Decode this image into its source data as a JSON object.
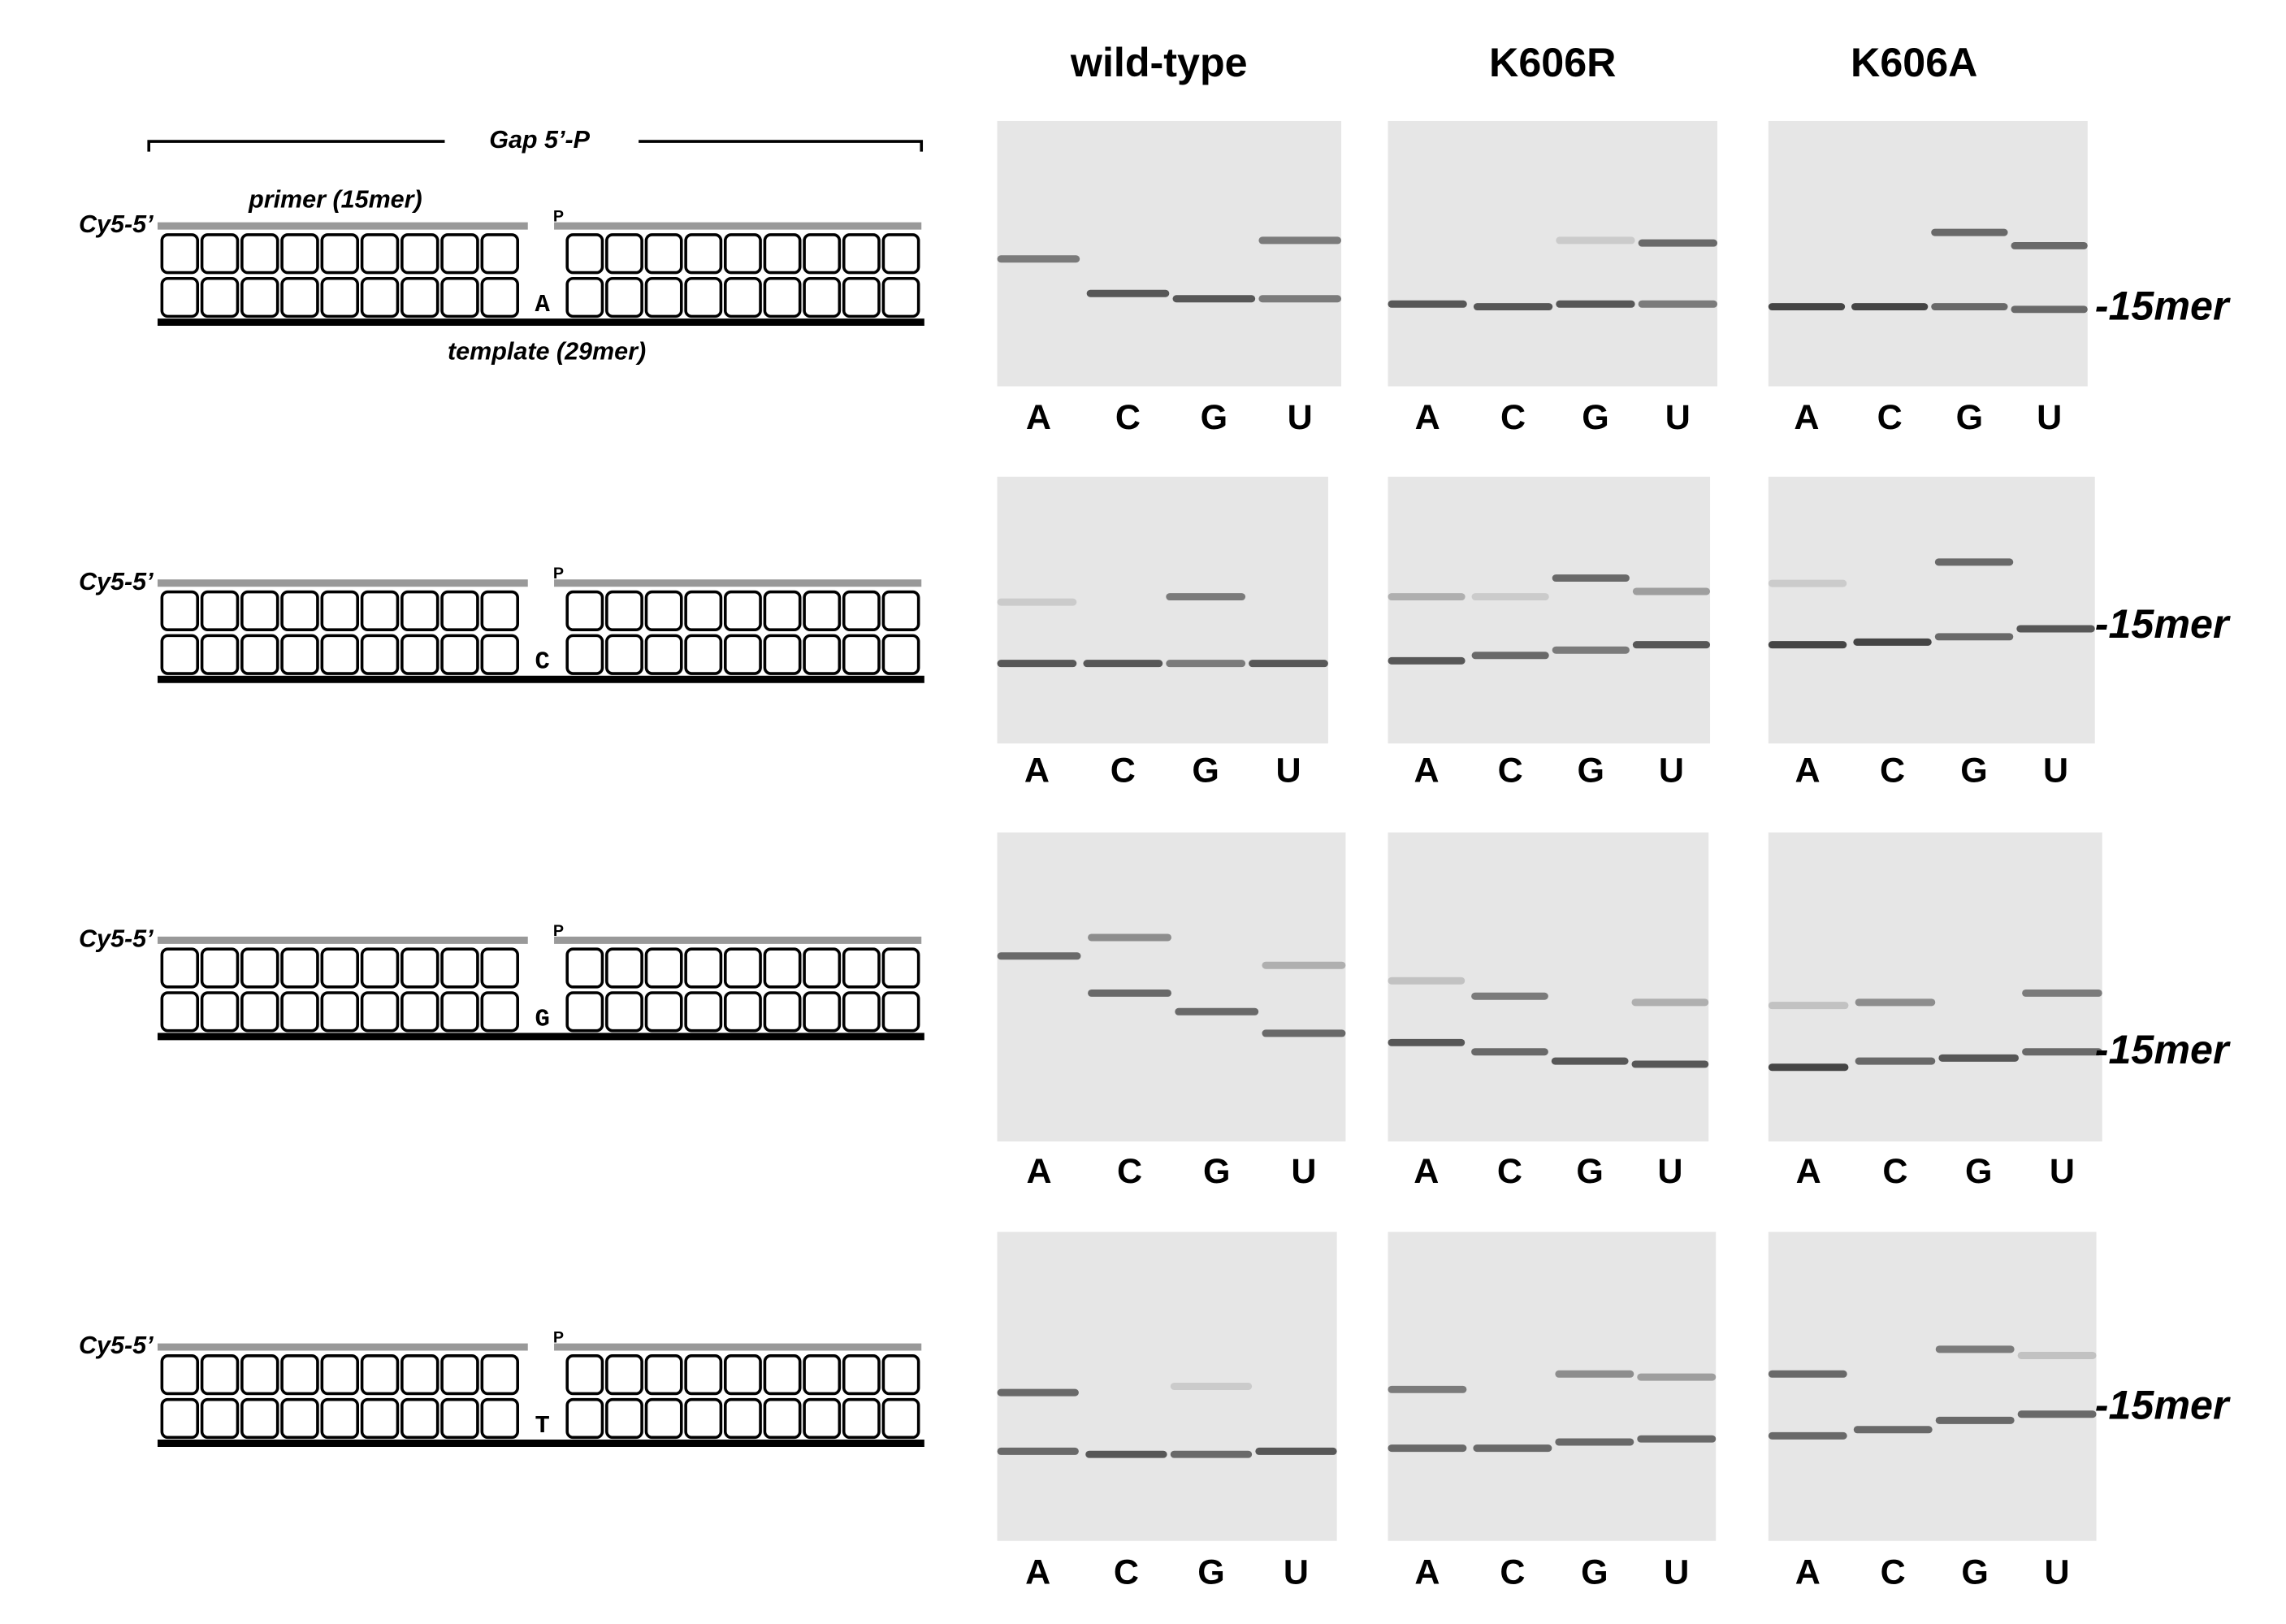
{
  "columns": [
    "wild-type",
    "K606R",
    "K606A"
  ],
  "lanes": [
    "A",
    "C",
    "G",
    "U"
  ],
  "marker": "-15mer",
  "diagram": {
    "gap_label": "Gap 5’-P",
    "primer_label": "primer (15mer)",
    "template_label": "template (29mer)",
    "dye_label": "Cy5-5’",
    "phosphate_label": "P",
    "template_bases": [
      "A",
      "C",
      "G",
      "T"
    ]
  }
}
